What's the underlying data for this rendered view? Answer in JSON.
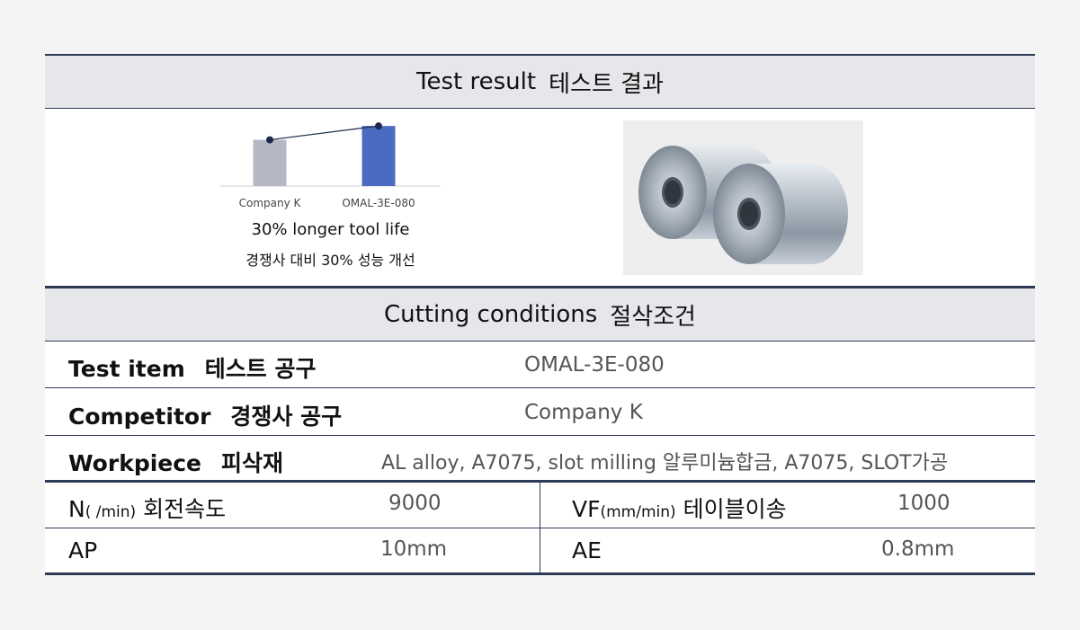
{
  "test_result": {
    "title_en": "Test result",
    "title_ko": "테스트 결과"
  },
  "chart_data": {
    "type": "bar",
    "categories": [
      "Company K",
      "OMAL-3E-080"
    ],
    "values": [
      100,
      130
    ],
    "ylim": [
      0,
      140
    ],
    "colors": [
      "#b3b8c2",
      "#4a6bbf"
    ],
    "line_color": "#1c2a4d"
  },
  "chart_caption": {
    "en": "30% longer tool life",
    "ko": "경쟁사 대비 30% 성능 개선"
  },
  "cutting": {
    "title_en": "Cutting conditions",
    "title_ko": "절삭조건"
  },
  "rows": {
    "test_item": {
      "label_en": "Test item",
      "label_ko": "테스트 공구",
      "value": "OMAL-3E-080"
    },
    "competitor": {
      "label_en": "Competitor",
      "label_ko": "경쟁사 공구",
      "value": "Company K"
    },
    "workpiece": {
      "label_en": "Workpiece",
      "label_ko": "피삭재",
      "value": "AL alloy, A7075, slot milling 알루미늄합금, A7075, SLOT가공"
    }
  },
  "params": {
    "n": {
      "label": "N",
      "unit": "( /min)",
      "label_ko": "회전속도",
      "value": "9000"
    },
    "vf": {
      "label": "VF",
      "unit": "(mm/min)",
      "label_ko": "테이블이송",
      "value": "1000"
    },
    "ap": {
      "label": "AP",
      "value": "10mm"
    },
    "ae": {
      "label": "AE",
      "value": "0.8mm"
    }
  }
}
